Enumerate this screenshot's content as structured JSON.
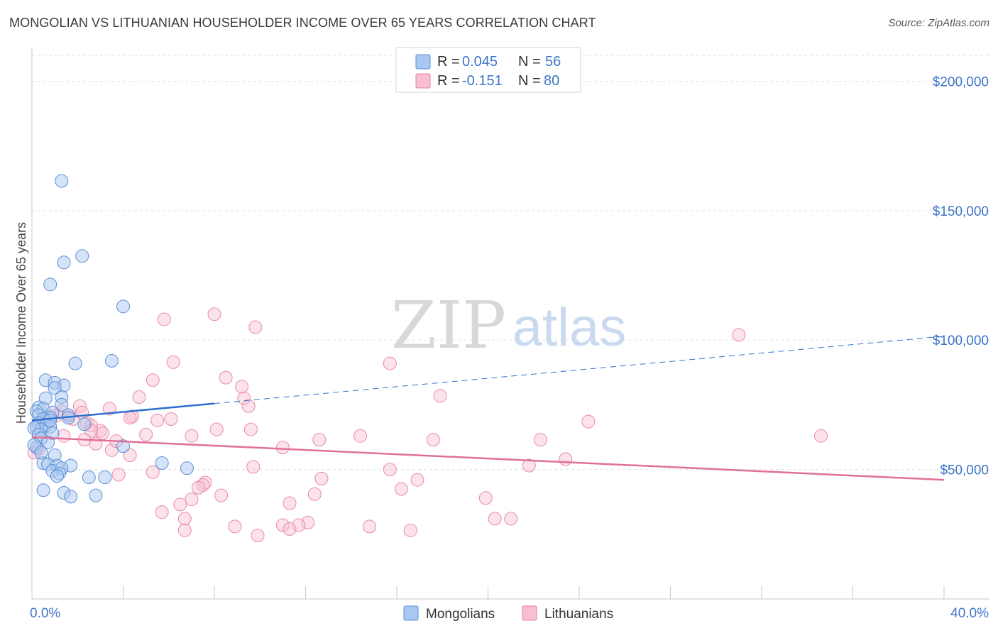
{
  "title": "MONGOLIAN VS LITHUANIAN HOUSEHOLDER INCOME OVER 65 YEARS CORRELATION CHART",
  "source": "Source: ZipAtlas.com",
  "watermark": {
    "zip": "ZIP",
    "atlas": "atlas"
  },
  "legend": {
    "r_label": "R =",
    "n_label": "N =",
    "items": [
      {
        "name": "Mongolians",
        "r": "0.045",
        "n": "56",
        "color": "#a9c8f0",
        "stroke": "#5b8fd6"
      },
      {
        "name": "Lithuanians",
        "r": "-0.151",
        "n": "80",
        "color": "#f8bfd0",
        "stroke": "#e67fa0"
      }
    ]
  },
  "colors": {
    "blue_line": "#2f6fcf",
    "pink_line": "#e07098",
    "grid": "#dde3ea",
    "axis_text": "#3f74c9"
  },
  "chart_data": {
    "type": "scatter",
    "title": "MONGOLIAN VS LITHUANIAN HOUSEHOLDER INCOME OVER 65 YEARS CORRELATION CHART",
    "xlabel": "",
    "ylabel": "Householder Income Over 65 years",
    "xlim": [
      0,
      40
    ],
    "ylim": [
      0,
      210000
    ],
    "x_tick_labels": [
      "0.0%",
      "40.0%"
    ],
    "y_ticks": [
      50000,
      100000,
      150000,
      200000
    ],
    "y_tick_labels": [
      "$50,000",
      "$100,000",
      "$150,000",
      "$200,000"
    ],
    "series": [
      {
        "name": "Mongolians",
        "r": 0.045,
        "n": 56,
        "trend": {
          "x": [
            0,
            8
          ],
          "y": [
            69000,
            75500
          ],
          "dashed_x": [
            8,
            40
          ],
          "dashed_y": [
            75500,
            101500
          ]
        },
        "points": [
          [
            1.3,
            161500
          ],
          [
            2.2,
            132500
          ],
          [
            1.4,
            130000
          ],
          [
            0.8,
            121500
          ],
          [
            4.0,
            113000
          ],
          [
            1.9,
            91000
          ],
          [
            3.5,
            92000
          ],
          [
            0.6,
            84500
          ],
          [
            1.0,
            83500
          ],
          [
            1.4,
            82500
          ],
          [
            1.0,
            81500
          ],
          [
            0.6,
            77500
          ],
          [
            1.3,
            78000
          ],
          [
            0.3,
            74000
          ],
          [
            0.5,
            73500
          ],
          [
            0.2,
            72500
          ],
          [
            1.3,
            75000
          ],
          [
            0.9,
            72000
          ],
          [
            0.3,
            71000
          ],
          [
            1.6,
            71000
          ],
          [
            0.8,
            70000
          ],
          [
            0.5,
            69500
          ],
          [
            0.3,
            68000
          ],
          [
            0.6,
            67000
          ],
          [
            0.2,
            66500
          ],
          [
            0.8,
            66500
          ],
          [
            0.4,
            65500
          ],
          [
            2.3,
            67500
          ],
          [
            0.1,
            66000
          ],
          [
            0.3,
            63500
          ],
          [
            0.9,
            64000
          ],
          [
            0.4,
            62000
          ],
          [
            0.7,
            60500
          ],
          [
            4.0,
            59000
          ],
          [
            0.2,
            58500
          ],
          [
            0.1,
            59500
          ],
          [
            0.5,
            52500
          ],
          [
            1.0,
            55500
          ],
          [
            0.7,
            52000
          ],
          [
            1.1,
            51500
          ],
          [
            0.9,
            49500
          ],
          [
            1.7,
            51500
          ],
          [
            1.3,
            50500
          ],
          [
            1.2,
            48500
          ],
          [
            1.1,
            47500
          ],
          [
            2.5,
            47000
          ],
          [
            3.2,
            47000
          ],
          [
            5.7,
            52500
          ],
          [
            6.8,
            50500
          ],
          [
            0.5,
            42000
          ],
          [
            1.4,
            41000
          ],
          [
            1.7,
            39500
          ],
          [
            2.8,
            40000
          ],
          [
            0.4,
            56500
          ],
          [
            0.8,
            69000
          ],
          [
            1.6,
            70000
          ]
        ]
      },
      {
        "name": "Lithuanians",
        "r": -0.151,
        "n": 80,
        "trend": {
          "x": [
            0,
            40
          ],
          "y": [
            62500,
            46000
          ]
        },
        "points": [
          [
            8.0,
            110000
          ],
          [
            5.8,
            108000
          ],
          [
            9.8,
            105000
          ],
          [
            31.0,
            102000
          ],
          [
            6.2,
            91500
          ],
          [
            15.7,
            91000
          ],
          [
            5.3,
            84500
          ],
          [
            8.5,
            85500
          ],
          [
            9.2,
            82000
          ],
          [
            4.7,
            78000
          ],
          [
            17.9,
            78500
          ],
          [
            9.3,
            77500
          ],
          [
            9.5,
            74500
          ],
          [
            3.4,
            73500
          ],
          [
            2.1,
            74500
          ],
          [
            1.3,
            72500
          ],
          [
            1.6,
            71000
          ],
          [
            1.1,
            71000
          ],
          [
            0.8,
            70500
          ],
          [
            1.8,
            69500
          ],
          [
            4.4,
            70500
          ],
          [
            4.3,
            70000
          ],
          [
            6.1,
            69500
          ],
          [
            5.5,
            69000
          ],
          [
            24.4,
            68500
          ],
          [
            2.4,
            68000
          ],
          [
            2.6,
            67000
          ],
          [
            3.0,
            65000
          ],
          [
            2.6,
            65000
          ],
          [
            3.1,
            64000
          ],
          [
            5.0,
            63500
          ],
          [
            7.0,
            63000
          ],
          [
            14.4,
            63000
          ],
          [
            12.6,
            61500
          ],
          [
            17.6,
            61500
          ],
          [
            22.3,
            61500
          ],
          [
            34.6,
            63000
          ],
          [
            8.1,
            65500
          ],
          [
            9.6,
            65500
          ],
          [
            2.3,
            61500
          ],
          [
            2.8,
            60000
          ],
          [
            3.5,
            57500
          ],
          [
            4.3,
            55500
          ],
          [
            3.7,
            61000
          ],
          [
            11.0,
            58500
          ],
          [
            23.4,
            54000
          ],
          [
            21.8,
            51500
          ],
          [
            9.7,
            51000
          ],
          [
            15.7,
            50000
          ],
          [
            5.3,
            49000
          ],
          [
            3.8,
            48000
          ],
          [
            12.7,
            46500
          ],
          [
            16.9,
            46000
          ],
          [
            7.6,
            45000
          ],
          [
            7.5,
            44000
          ],
          [
            7.3,
            43000
          ],
          [
            16.2,
            42500
          ],
          [
            12.4,
            40500
          ],
          [
            8.3,
            40000
          ],
          [
            19.9,
            39000
          ],
          [
            7.0,
            38500
          ],
          [
            11.3,
            37000
          ],
          [
            6.5,
            36500
          ],
          [
            5.7,
            33500
          ],
          [
            6.7,
            31000
          ],
          [
            21.0,
            31000
          ],
          [
            20.3,
            31000
          ],
          [
            12.1,
            29500
          ],
          [
            11.7,
            28500
          ],
          [
            11.0,
            28500
          ],
          [
            14.8,
            28000
          ],
          [
            8.9,
            28000
          ],
          [
            6.7,
            26500
          ],
          [
            11.3,
            27000
          ],
          [
            16.6,
            26500
          ],
          [
            9.9,
            24500
          ],
          [
            0.1,
            56500
          ],
          [
            0.3,
            58000
          ],
          [
            1.4,
            63000
          ],
          [
            2.2,
            72000
          ]
        ]
      }
    ]
  }
}
